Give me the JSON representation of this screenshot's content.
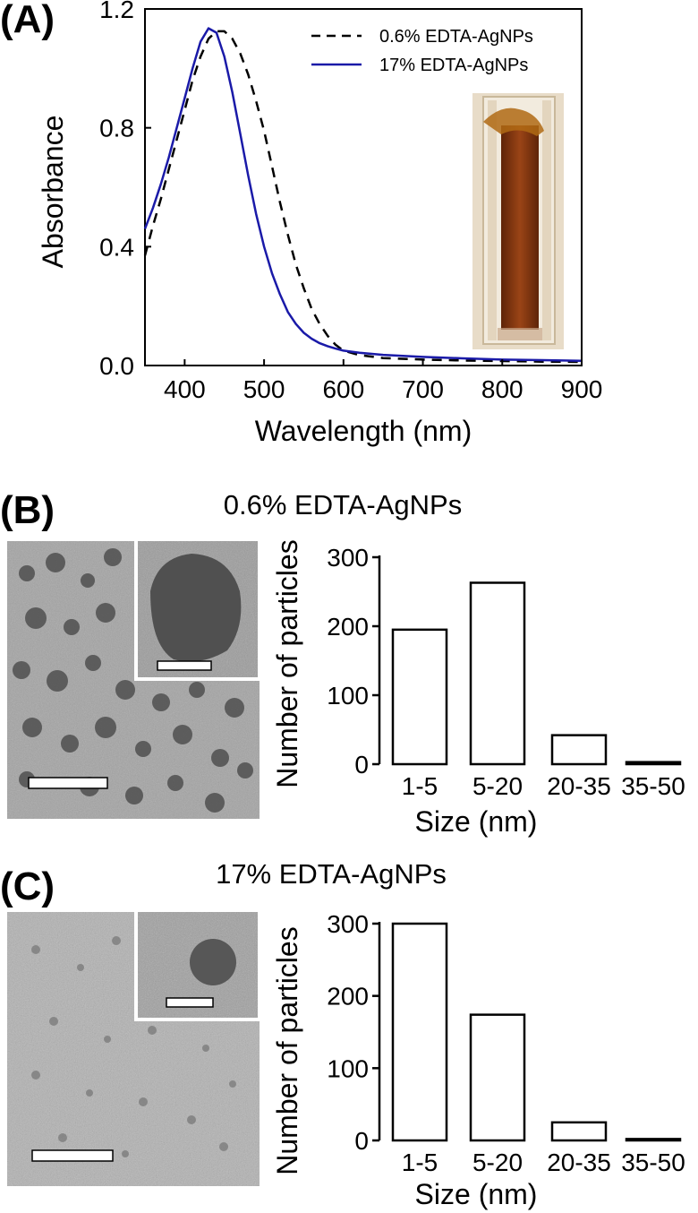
{
  "colors": {
    "dashed_series": "#000000",
    "solid_series": "#1a1aa8",
    "bar_fill": "#ffffff",
    "bar_stroke": "#000000",
    "tem_background": "#a8a8a8",
    "cuvette_liquid": "#8a3a12"
  },
  "panels": {
    "a": {
      "label": "(A)"
    },
    "b": {
      "label": "(B)",
      "title": "0.6% EDTA-AgNPs"
    },
    "c": {
      "label": "(C)",
      "title": "17% EDTA-AgNPs"
    }
  },
  "images": {
    "b_tem": "tem-micrograph-0.6",
    "c_tem": "tem-micrograph-17",
    "a_inset": "cuvette-photo"
  },
  "chart_data": [
    {
      "type": "line",
      "xlabel": "Wavelength (nm)",
      "ylabel": "Absorbance",
      "xlim": [
        350,
        900
      ],
      "ylim": [
        0,
        1.2
      ],
      "xticks": [
        400,
        500,
        600,
        700,
        800,
        900
      ],
      "yticks": [
        0.0,
        0.4,
        0.8,
        1.2
      ],
      "ytick_labels": [
        "0.0",
        "0.4",
        "0.8",
        "1.2"
      ],
      "grid": false,
      "legend_position": "top-right",
      "series": [
        {
          "name": "0.6% EDTA-AgNPs",
          "style": "dashed",
          "x": [
            350,
            360,
            370,
            380,
            390,
            400,
            410,
            420,
            430,
            440,
            450,
            460,
            470,
            480,
            490,
            500,
            510,
            520,
            530,
            540,
            550,
            560,
            570,
            580,
            590,
            600,
            620,
            650,
            700,
            750,
            800,
            850,
            900
          ],
          "y": [
            0.37,
            0.47,
            0.56,
            0.66,
            0.76,
            0.86,
            0.96,
            1.04,
            1.1,
            1.125,
            1.125,
            1.1,
            1.05,
            0.98,
            0.89,
            0.79,
            0.67,
            0.55,
            0.44,
            0.34,
            0.26,
            0.19,
            0.14,
            0.1,
            0.07,
            0.05,
            0.035,
            0.025,
            0.02,
            0.017,
            0.015,
            0.013,
            0.012
          ]
        },
        {
          "name": "17% EDTA-AgNPs",
          "style": "solid",
          "x": [
            350,
            360,
            370,
            380,
            390,
            400,
            410,
            420,
            430,
            440,
            450,
            460,
            470,
            480,
            490,
            500,
            510,
            520,
            530,
            540,
            550,
            560,
            570,
            580,
            590,
            600,
            620,
            650,
            700,
            750,
            800,
            850,
            900
          ],
          "y": [
            0.46,
            0.53,
            0.61,
            0.7,
            0.8,
            0.9,
            1.0,
            1.09,
            1.135,
            1.12,
            1.04,
            0.92,
            0.78,
            0.64,
            0.51,
            0.4,
            0.31,
            0.24,
            0.18,
            0.14,
            0.11,
            0.09,
            0.075,
            0.065,
            0.057,
            0.05,
            0.043,
            0.036,
            0.029,
            0.024,
            0.02,
            0.018,
            0.016
          ]
        }
      ]
    },
    {
      "type": "bar",
      "xlabel": "Size (nm)",
      "ylabel": "Number of particles",
      "categories": [
        "1-5",
        "5-20",
        "20-35",
        "35-50"
      ],
      "values": [
        195,
        263,
        42,
        3
      ],
      "ylim": [
        0,
        300
      ],
      "yticks": [
        0,
        100,
        200,
        300
      ],
      "grid": false
    },
    {
      "type": "bar",
      "xlabel": "Size (nm)",
      "ylabel": "Number of particles",
      "categories": [
        "1-5",
        "5-20",
        "20-35",
        "35-50"
      ],
      "values": [
        300,
        174,
        25,
        2
      ],
      "ylim": [
        0,
        300
      ],
      "yticks": [
        0,
        100,
        200,
        300
      ],
      "grid": false
    }
  ]
}
